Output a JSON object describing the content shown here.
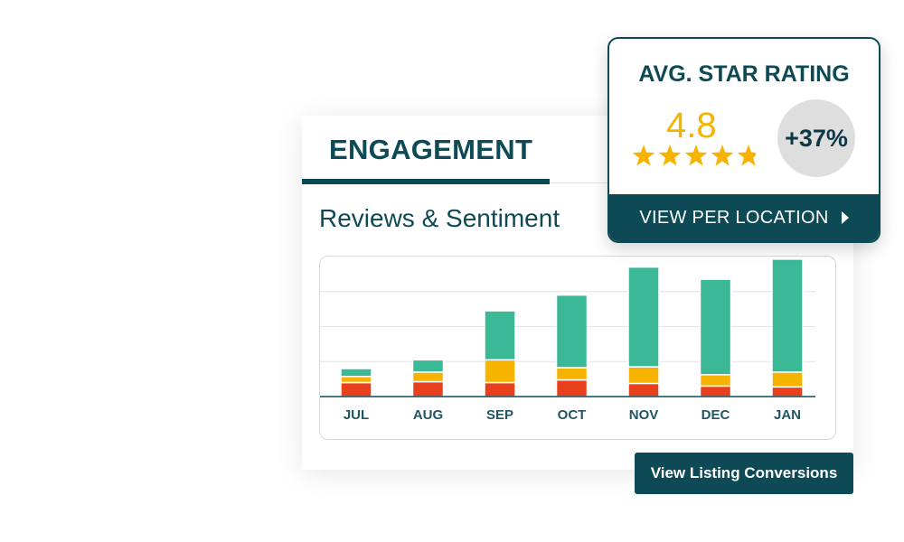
{
  "engagement": {
    "tab_label": "ENGAGEMENT",
    "section_title": "Reviews & Sentiment",
    "cta_label": "View Listing Conversions"
  },
  "rating_card": {
    "title": "AVG. STAR RATING",
    "value": "4.8",
    "stars": 4.8,
    "change": "+37%",
    "footer_label": "VIEW PER LOCATION"
  },
  "colors": {
    "brand": "#0d4a55",
    "positive": "#3bb996",
    "neutral": "#f6b400",
    "negative": "#e8401c"
  },
  "chart_data": {
    "type": "bar",
    "stacked": true,
    "categories": [
      "JUL",
      "AUG",
      "SEP",
      "OCT",
      "NOV",
      "DEC",
      "JAN"
    ],
    "series": [
      {
        "values": [
          16,
          17,
          16,
          19,
          15,
          12,
          11
        ]
      },
      {
        "values": [
          7,
          11,
          26,
          14,
          19,
          13,
          17
        ]
      },
      {
        "values": [
          9,
          14,
          56,
          83,
          114,
          109,
          129
        ]
      }
    ],
    "ylim": [
      0,
      160
    ],
    "grid": true
  }
}
